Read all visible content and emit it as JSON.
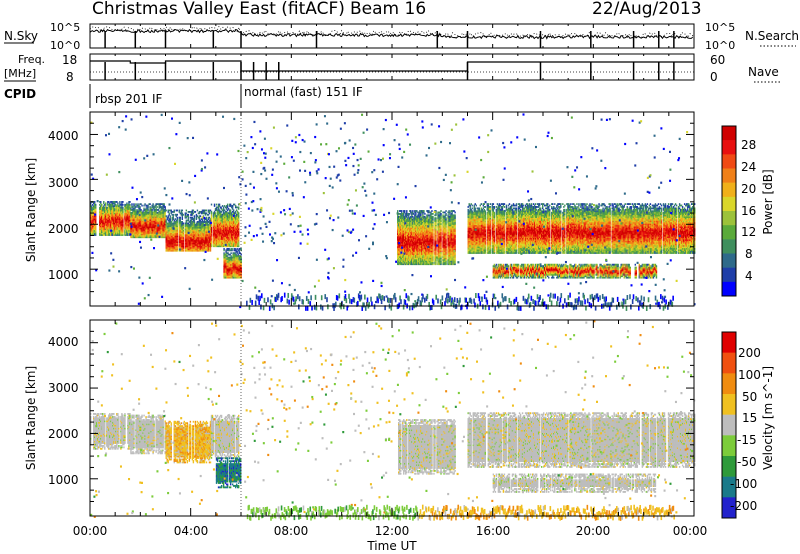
{
  "header": {
    "title": "Christmas Valley East (fitACF)",
    "beam": "Beam 16",
    "date": "22/Aug/2013"
  },
  "panels": {
    "nsky_label": "N.Sky",
    "nsearch_label": "N.Search",
    "freq_label_line1": "Freq.",
    "freq_label_line2": "[MHz]",
    "nave_label": "Nave",
    "cpid_label": "CPID",
    "nsky_ticks": [
      "10^5",
      "10^0"
    ],
    "nsearch_ticks": [
      "10^5",
      "10^0"
    ],
    "freq_ticks": [
      "18",
      "8"
    ],
    "nave_ticks": [
      "60",
      "0"
    ],
    "cpid_segments": [
      {
        "start_hour": 0,
        "label": "rbsp 201 IF"
      },
      {
        "start_hour": 6,
        "label": "normal (fast) 151 IF"
      }
    ]
  },
  "chart_data": [
    {
      "type": "heatmap",
      "name": "power",
      "ylabel": "Slant Range [km]",
      "xlim_hours": [
        0,
        24
      ],
      "ylim": [
        180,
        4500
      ],
      "y_ticks": [
        "1000",
        "2000",
        "3000",
        "4000"
      ],
      "colorbar": {
        "label": "Power [dB]",
        "ticks": [
          "28",
          "24",
          "20",
          "16",
          "12",
          "8",
          "4"
        ],
        "colors": [
          "#0000ff",
          "#1e3ea8",
          "#2e6a8a",
          "#3f8f5e",
          "#5aaa3a",
          "#9cc23a",
          "#d9d62a",
          "#f0b01a",
          "#f08018",
          "#f04a14",
          "#e81010",
          "#d00000"
        ]
      },
      "bands": [
        {
          "h0": 0.0,
          "h1": 1.6,
          "r0": 1750,
          "r1": 2500,
          "core": 2050
        },
        {
          "h0": 1.6,
          "h1": 3.0,
          "r0": 1700,
          "r1": 2450,
          "core": 1950
        },
        {
          "h0": 3.0,
          "h1": 4.8,
          "r0": 1400,
          "r1": 2300,
          "core": 1600
        },
        {
          "h0": 4.8,
          "h1": 5.9,
          "r0": 1500,
          "r1": 2450,
          "core": 1800
        },
        {
          "h0": 5.3,
          "h1": 6.0,
          "r0": 800,
          "r1": 1450,
          "core": 1000
        },
        {
          "h0": 12.2,
          "h1": 14.5,
          "r0": 1100,
          "r1": 2300,
          "core": 1600
        },
        {
          "h0": 15.0,
          "h1": 24.0,
          "r0": 1350,
          "r1": 2450,
          "core": 1800
        },
        {
          "h0": 16.0,
          "h1": 22.5,
          "r0": 800,
          "r1": 1100,
          "core": 950
        }
      ]
    },
    {
      "type": "heatmap",
      "name": "velocity",
      "ylabel": "Slant Range [km]",
      "xlabel": "Time UT",
      "xlim_hours": [
        0,
        24
      ],
      "ylim": [
        180,
        4500
      ],
      "y_ticks": [
        "1000",
        "2000",
        "3000",
        "4000"
      ],
      "x_ticks": [
        "00:00",
        "04:00",
        "08:00",
        "12:00",
        "16:00",
        "20:00",
        "00:00"
      ],
      "colorbar": {
        "label": "Velocity [m s^-1]",
        "ticks": [
          "200",
          "100",
          "50",
          "15",
          "-15",
          "-50",
          "-100",
          "-200"
        ],
        "colors": [
          "#2222cc",
          "#1a7a8a",
          "#2e9a3a",
          "#7ccc3a",
          "#bdbdbd",
          "#f0c020",
          "#f08c10",
          "#f05010",
          "#e00000"
        ]
      }
    }
  ]
}
